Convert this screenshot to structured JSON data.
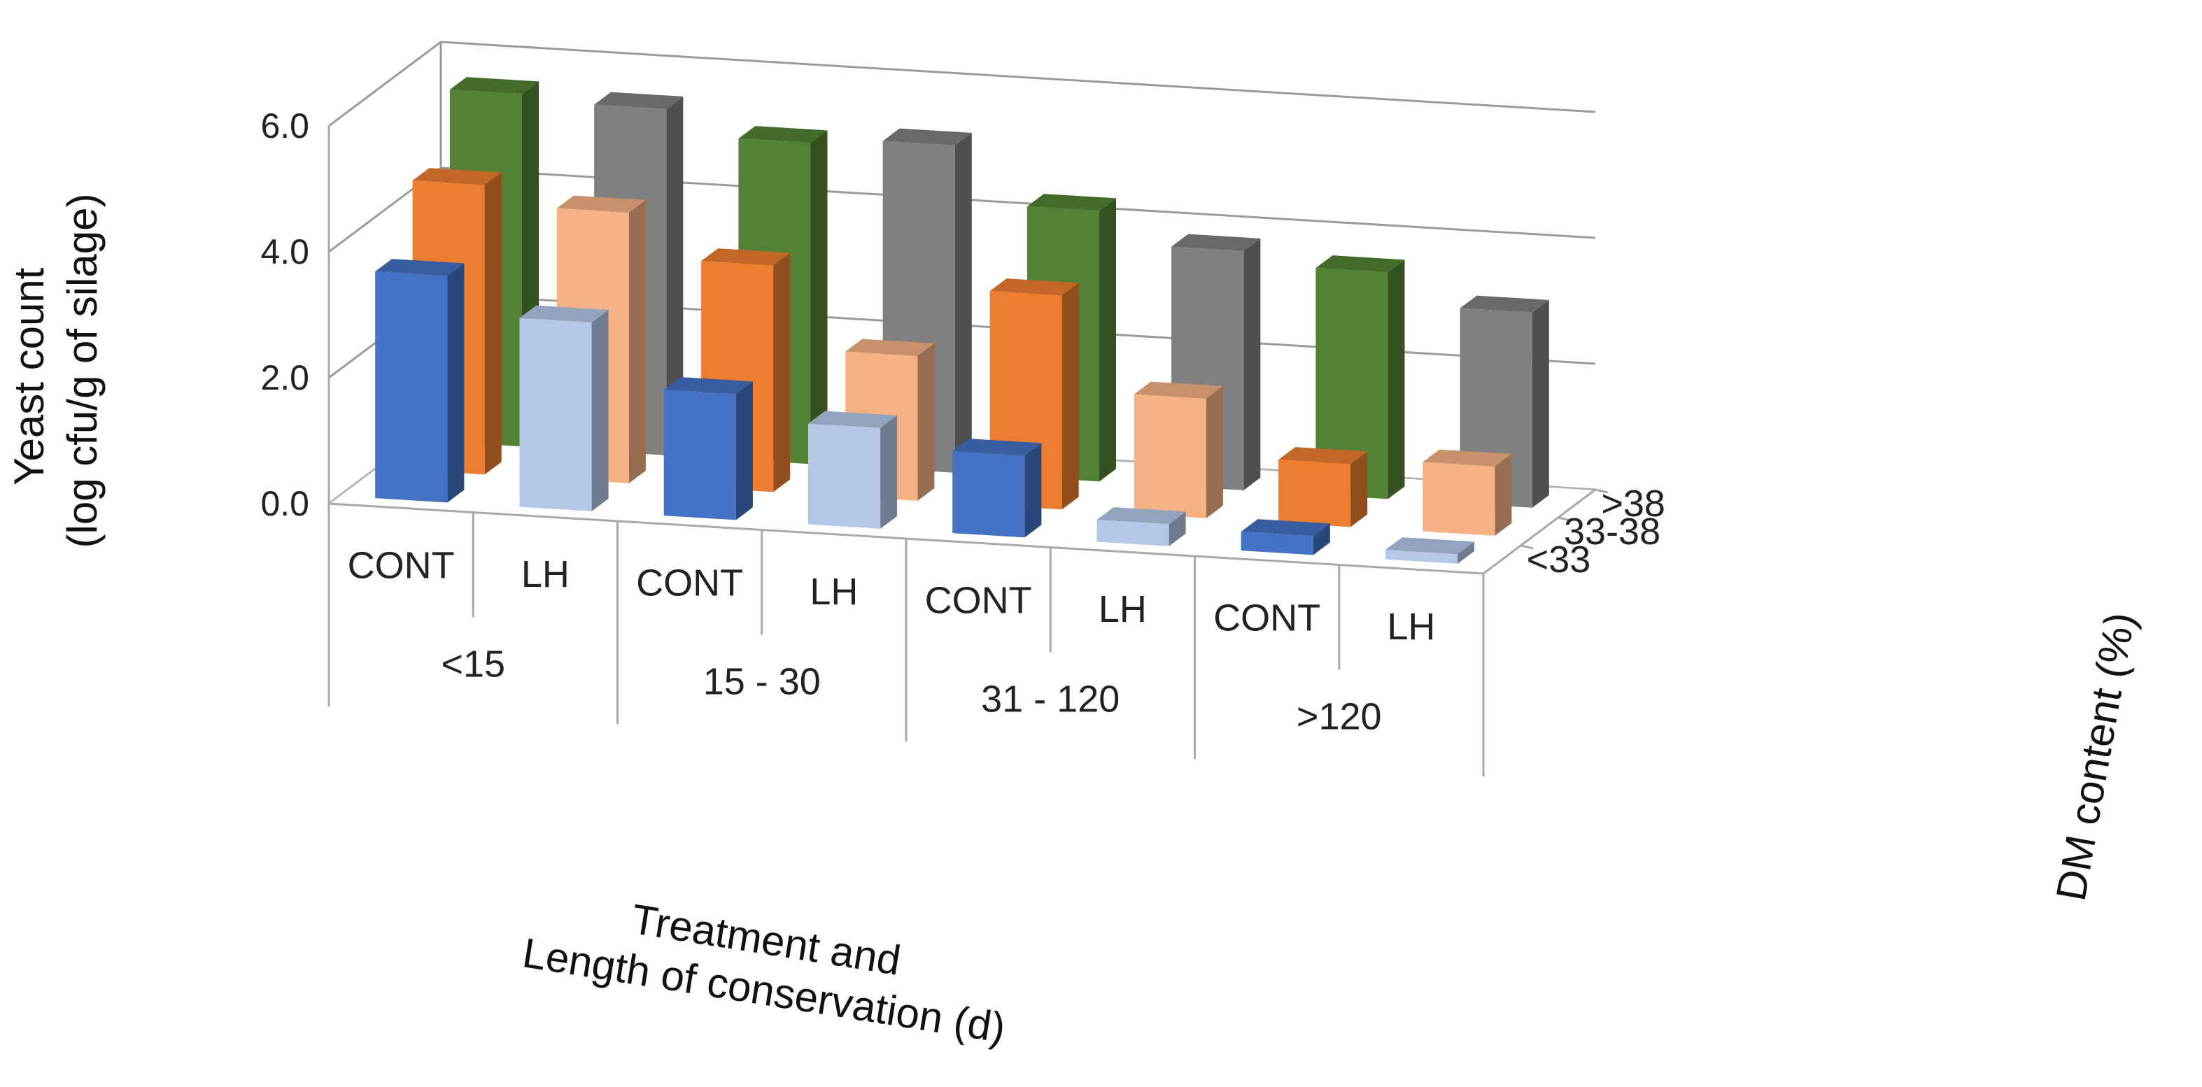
{
  "chart_data": {
    "type": "bar",
    "subtype": "3d-column",
    "ylabel": "Yeast count (log cfu/g of silage)",
    "ylabel_lines": [
      "Yeast count",
      "(log cfu/g of silage)"
    ],
    "xlabel": "Treatment and Length of conservation (d)",
    "xlabel_lines": [
      "Treatment and",
      "Length of conservation (d)"
    ],
    "zlabel": "DM content (%)",
    "yticks": [
      "0.0",
      "2.0",
      "4.0",
      "6.0"
    ],
    "ylim": [
      0,
      6
    ],
    "groups": [
      "<15",
      "15 - 30",
      "31 - 120",
      ">120"
    ],
    "treatments": [
      "CONT",
      "LH"
    ],
    "categories": [
      "CONT <15",
      "LH <15",
      "CONT 15 - 30",
      "LH 15 - 30",
      "CONT 31 - 120",
      "LH 31 - 120",
      "CONT >120",
      "LH >120"
    ],
    "depth_categories": [
      ">38",
      "33-38",
      "<33"
    ],
    "series": [
      {
        "name": "<33",
        "depth": 0,
        "values": [
          3.6,
          3.0,
          2.0,
          1.6,
          1.3,
          0.35,
          0.3,
          0.15
        ]
      },
      {
        "name": "33-38",
        "depth": 1,
        "values": [
          4.6,
          4.3,
          3.6,
          2.3,
          3.4,
          1.9,
          1.0,
          1.1
        ]
      },
      {
        "name": ">38",
        "depth": 2,
        "values": [
          5.6,
          5.5,
          5.1,
          5.2,
          4.3,
          3.8,
          3.6,
          3.1
        ]
      }
    ],
    "series_colors": [
      {
        "cont": "#4472c4",
        "lh": "#b4c7e7"
      },
      {
        "cont": "#ed7d31",
        "lh": "#f4b183"
      },
      {
        "cont": "#548235",
        "lh": "#808080"
      }
    ]
  }
}
